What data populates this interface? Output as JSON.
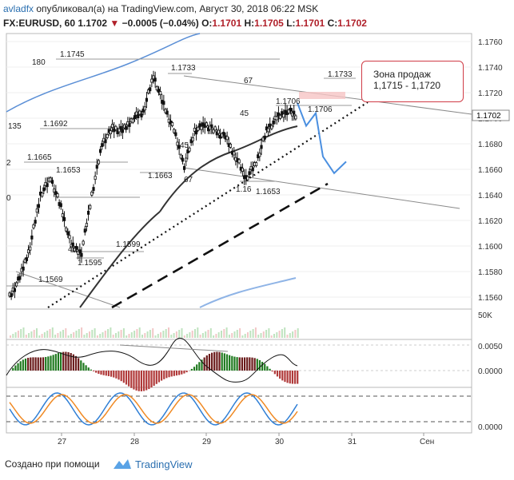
{
  "header": {
    "author": "avladfx",
    "published_on": "опубликовал(а) на TradingView.com, Август 30, 2018 06:22 MSK",
    "symbol": "FX:EURUSD, 60",
    "last": "1.1702",
    "change": "−0.0005 (−0.04%)",
    "o_label": "O:",
    "o_value": "1.1701",
    "h_label": "H:",
    "h_value": "1.1705",
    "l_label": "L:",
    "l_value": "1.1701",
    "c_label": "C:",
    "c_value": "1.1702"
  },
  "callout": {
    "line1": "Зона продаж",
    "line2": "1,1715 - 1,1720"
  },
  "price_axis": {
    "ticks": [
      "1.1760",
      "1.1740",
      "1.1720",
      "1.1700",
      "1.1680",
      "1.1660",
      "1.1640",
      "1.1620",
      "1.1600",
      "1.1580",
      "1.1560"
    ],
    "current_price": "1.1702"
  },
  "volume_axis": {
    "label": "50K"
  },
  "macd_axis": {
    "ticks": [
      "0.0050",
      "0.0000"
    ]
  },
  "stoch_axis": {
    "ticks": [
      "0.0000"
    ]
  },
  "time_axis": {
    "ticks": [
      "27",
      "28",
      "29",
      "30",
      "31",
      "Сен"
    ]
  },
  "chart_data": {
    "type": "line",
    "symbol": "FX:EURUSD",
    "timeframe": "60",
    "x": [
      "27",
      "28",
      "29",
      "30",
      "31",
      "Сен"
    ],
    "close_path_approx": [
      1.156,
      1.1575,
      1.16,
      1.164,
      1.1653,
      1.163,
      1.16,
      1.1595,
      1.164,
      1.168,
      1.1692,
      1.169,
      1.17,
      1.1705,
      1.1733,
      1.171,
      1.169,
      1.1663,
      1.169,
      1.1695,
      1.169,
      1.1685,
      1.167,
      1.1653,
      1.1665,
      1.169,
      1.17,
      1.1706,
      1.1702
    ],
    "ylim": [
      1.155,
      1.177
    ],
    "annotations": {
      "price_labels": [
        "1.1745",
        "1.1733",
        "1.1733",
        "1.1692",
        "1.1665",
        "1.1653",
        "1.1663",
        "1.1653",
        "1.1706",
        "1.1706",
        "1.16",
        "1.1599",
        "1.1595",
        "1.1569"
      ],
      "count_labels": [
        "180",
        "135",
        "2",
        "0",
        "67",
        "45",
        "45",
        "67",
        "45"
      ]
    },
    "forecast": [
      1.1712,
      1.1694,
      1.1704,
      1.167,
      1.1657,
      1.1666
    ],
    "sell_zone": [
      1.1715,
      1.172
    ]
  },
  "footer": {
    "created_with": "Создано при помощи",
    "brand": "TradingView"
  }
}
